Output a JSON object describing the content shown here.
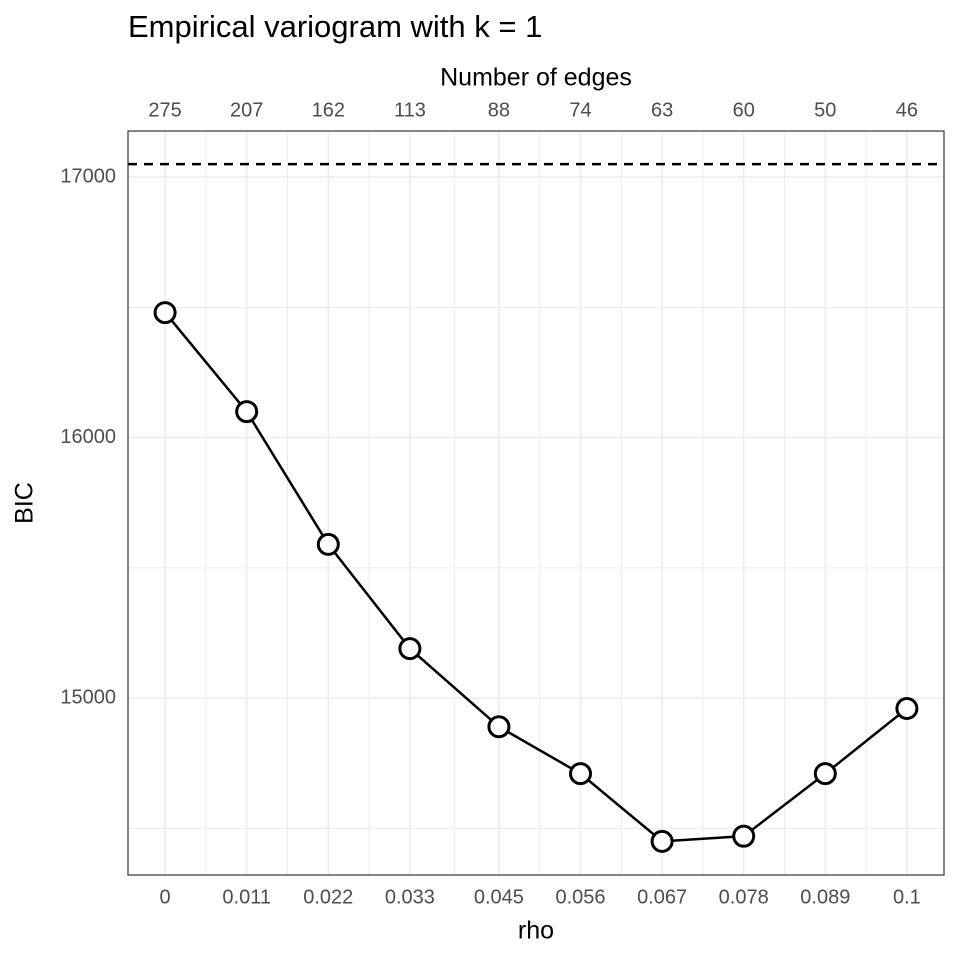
{
  "chart_data": {
    "type": "line",
    "title": "Empirical variogram with k = 1",
    "x_label": "rho",
    "y_label": "BIC",
    "x2_label": "Number of edges",
    "series": [
      {
        "color": "#000000",
        "x": [
          0,
          0.011,
          0.022,
          0.033,
          0.045,
          0.056,
          0.067,
          0.078,
          0.089,
          0.1
        ],
        "values": [
          16480,
          16100,
          15590,
          15190,
          14890,
          14710,
          14450,
          14470,
          14710,
          14960
        ]
      }
    ],
    "hline": 17050,
    "xlim": [
      -0.005,
      0.105
    ],
    "ylim": [
      14321,
      17177
    ],
    "xticks": [
      0,
      0.011,
      0.022,
      0.033,
      0.045,
      0.056,
      0.067,
      0.078,
      0.089,
      0.1
    ],
    "x2ticks": [
      {
        "value": 0,
        "label": "275"
      },
      {
        "value": 0.011,
        "label": "207"
      },
      {
        "value": 0.022,
        "label": "162"
      },
      {
        "value": 0.033,
        "label": "113"
      },
      {
        "value": 0.045,
        "label": "88"
      },
      {
        "value": 0.056,
        "label": "74"
      },
      {
        "value": 0.067,
        "label": "63"
      },
      {
        "value": 0.078,
        "label": "60"
      },
      {
        "value": 0.089,
        "label": "50"
      },
      {
        "value": 0.1,
        "label": "46"
      }
    ],
    "yticks": [
      15000,
      16000,
      17000
    ],
    "grid": true
  }
}
